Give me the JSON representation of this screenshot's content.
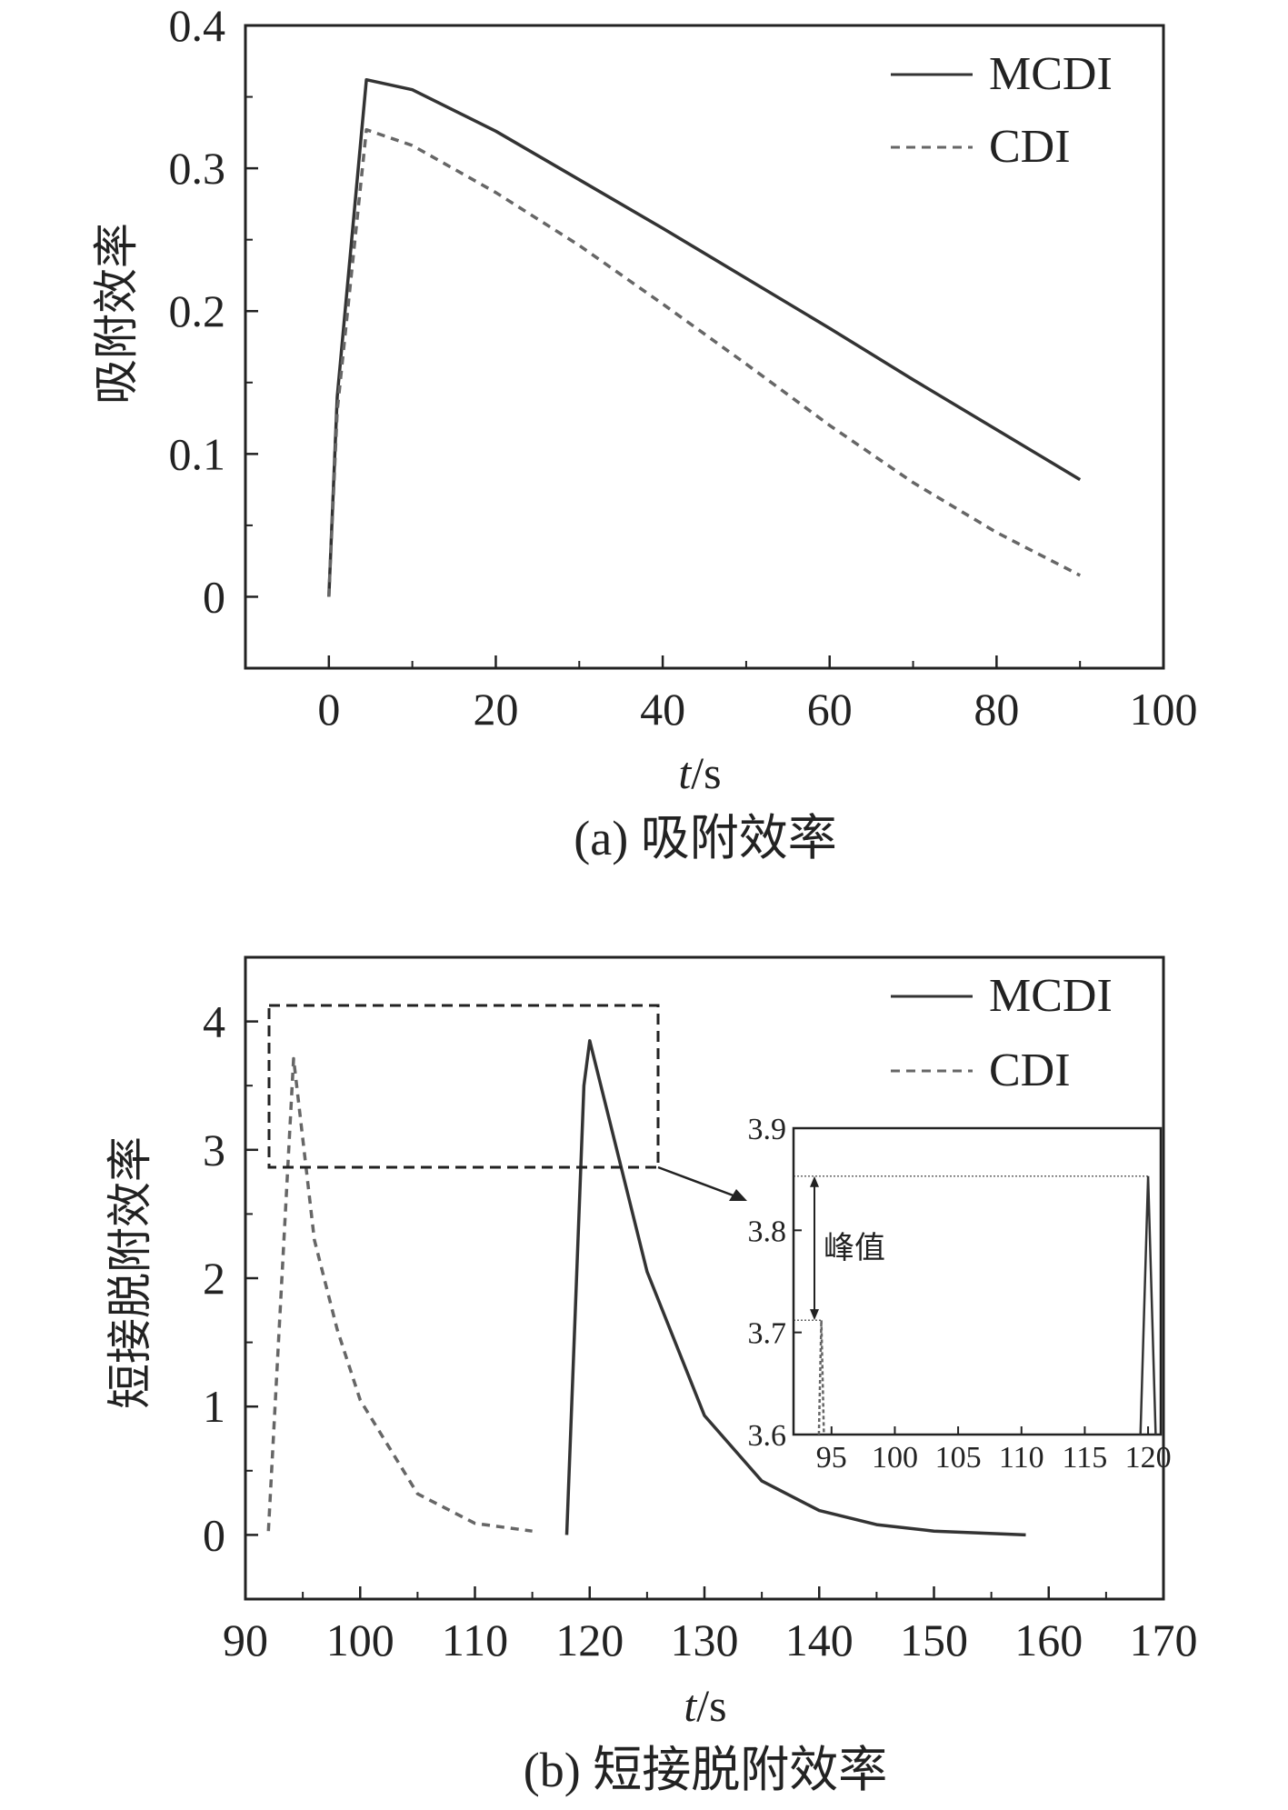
{
  "chart_data": [
    {
      "type": "line",
      "caption": "(a) 吸附效率",
      "xlabel_italic": "t",
      "xlabel_unit": "/s",
      "ylabel": "吸附效率",
      "xlim": [
        -10,
        100
      ],
      "ylim": [
        -0.05,
        0.4
      ],
      "xticks": [
        "0",
        "20",
        "40",
        "60",
        "80",
        "100"
      ],
      "xtick_values": [
        0,
        20,
        40,
        60,
        80,
        100
      ],
      "yticks": [
        "0",
        "0.1",
        "0.2",
        "0.3",
        "0.4"
      ],
      "ytick_values": [
        0,
        0.1,
        0.2,
        0.3,
        0.4
      ],
      "legend_position": "top-right",
      "series": [
        {
          "name": "MCDI",
          "style": "solid",
          "color": "#333333",
          "x": [
            0,
            1,
            4.5,
            10,
            20,
            30,
            40,
            50,
            60,
            70,
            80,
            90
          ],
          "y": [
            0,
            0.14,
            0.362,
            0.355,
            0.326,
            0.292,
            0.258,
            0.223,
            0.188,
            0.152,
            0.117,
            0.082
          ]
        },
        {
          "name": "CDI",
          "style": "dashed",
          "color": "#666666",
          "x": [
            0,
            1,
            4.5,
            10,
            20,
            30,
            40,
            50,
            60,
            70,
            80,
            90
          ],
          "y": [
            0,
            0.13,
            0.327,
            0.316,
            0.283,
            0.246,
            0.205,
            0.163,
            0.12,
            0.08,
            0.045,
            0.015
          ]
        }
      ]
    },
    {
      "type": "line",
      "caption": "(b) 短接脱附效率",
      "xlabel_italic": "t",
      "xlabel_unit": "/s",
      "ylabel": "短接脱附效率",
      "xlim": [
        90,
        170
      ],
      "ylim": [
        -0.5,
        4.5
      ],
      "xticks": [
        "90",
        "100",
        "110",
        "120",
        "130",
        "140",
        "150",
        "160",
        "170"
      ],
      "xtick_values": [
        90,
        100,
        110,
        120,
        130,
        140,
        150,
        160,
        170
      ],
      "yticks": [
        "0",
        "1",
        "2",
        "3",
        "4"
      ],
      "ytick_values": [
        0,
        1,
        2,
        3,
        4
      ],
      "legend_position": "top-right",
      "series": [
        {
          "name": "MCDI",
          "style": "solid",
          "color": "#333333",
          "x": [
            118,
            119.5,
            120,
            125,
            130,
            135,
            140,
            145,
            150,
            158
          ],
          "y": [
            0,
            3.5,
            3.85,
            2.05,
            0.93,
            0.42,
            0.19,
            0.08,
            0.03,
            0.0
          ]
        },
        {
          "name": "CDI",
          "style": "dashed",
          "color": "#666666",
          "x": [
            92,
            94.2,
            96,
            98,
            100,
            105,
            110,
            115
          ],
          "y": [
            0.03,
            3.71,
            2.3,
            1.6,
            1.05,
            0.32,
            0.09,
            0.03
          ]
        }
      ],
      "inset": {
        "xlim": [
          92,
          121
        ],
        "ylim": [
          3.6,
          3.9
        ],
        "xticks": [
          "95",
          "100",
          "105",
          "110",
          "115",
          "120"
        ],
        "xtick_values": [
          95,
          100,
          105,
          110,
          115,
          120
        ],
        "yticks": [
          "3.6",
          "3.7",
          "3.8",
          "3.9"
        ],
        "ytick_values": [
          3.6,
          3.7,
          3.8,
          3.9
        ],
        "annotation": "峰值",
        "mcdi_peak": 3.853,
        "cdi_peak": 3.712,
        "mcdi_x": [
          119.4,
          120,
          120.6
        ],
        "mcdi_y": [
          3.6,
          3.853,
          3.6
        ],
        "cdi_x": [
          94.0,
          94.2,
          94.4
        ],
        "cdi_y": [
          3.6,
          3.712,
          3.6
        ]
      }
    }
  ]
}
